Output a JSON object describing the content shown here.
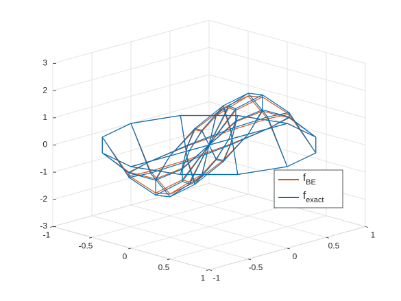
{
  "chart_data": {
    "type": "mesh3d",
    "r": [
      0,
      0.25,
      0.5,
      0.75,
      1
    ],
    "theta": [
      0,
      30,
      60,
      90,
      120,
      150,
      180,
      210,
      240,
      270,
      300,
      330
    ],
    "series": [
      {
        "name": "f",
        "name_sub": "BE",
        "color": "#d95319",
        "z": [
          [
            0,
            0,
            0,
            0,
            0,
            0,
            0,
            0,
            0,
            0,
            0,
            0
          ],
          [
            1.56,
            1.35,
            0.78,
            0,
            -0.78,
            -1.35,
            -1.56,
            -1.35,
            -0.78,
            0,
            0.78,
            1.35
          ],
          [
            2.2,
            1.91,
            1.1,
            0,
            -1.1,
            -1.91,
            -2.2,
            -1.91,
            -1.1,
            0,
            1.1,
            1.91
          ],
          [
            1.56,
            1.35,
            0.78,
            0,
            -0.78,
            -1.35,
            -1.56,
            -1.35,
            -0.78,
            0,
            0.78,
            1.35
          ],
          [
            0,
            0,
            0,
            0,
            0,
            0,
            0,
            0,
            0,
            0,
            0,
            0
          ]
        ]
      },
      {
        "name": "f",
        "name_sub": "exact",
        "color": "#0072bd",
        "z": [
          [
            0,
            0,
            0,
            0,
            0,
            0,
            0,
            0,
            0,
            0,
            0,
            0
          ],
          [
            1.63,
            1.41,
            0.81,
            0,
            -0.81,
            -1.41,
            -1.63,
            -1.41,
            -0.81,
            0,
            0.81,
            1.41
          ],
          [
            2.3,
            1.99,
            1.15,
            0,
            -1.15,
            -1.99,
            -2.3,
            -1.99,
            -1.15,
            0,
            1.15,
            1.99
          ],
          [
            1.63,
            1.41,
            0.81,
            0,
            -0.81,
            -1.41,
            -1.63,
            -1.41,
            -0.81,
            0,
            0.81,
            1.41
          ],
          [
            0,
            0,
            0,
            0,
            0,
            0,
            0,
            0,
            0,
            0,
            0,
            0
          ]
        ]
      }
    ],
    "xlim": [
      -1,
      1
    ],
    "xticks": [
      -1,
      -0.5,
      0,
      0.5,
      1
    ],
    "ylim": [
      -1,
      1
    ],
    "yticks": [
      -1,
      -0.5,
      0,
      0.5,
      1
    ],
    "zlim": [
      -3,
      3
    ],
    "zticks": [
      -3,
      -2,
      -1,
      0,
      1,
      2,
      3
    ],
    "grid": true,
    "legend": "east"
  }
}
